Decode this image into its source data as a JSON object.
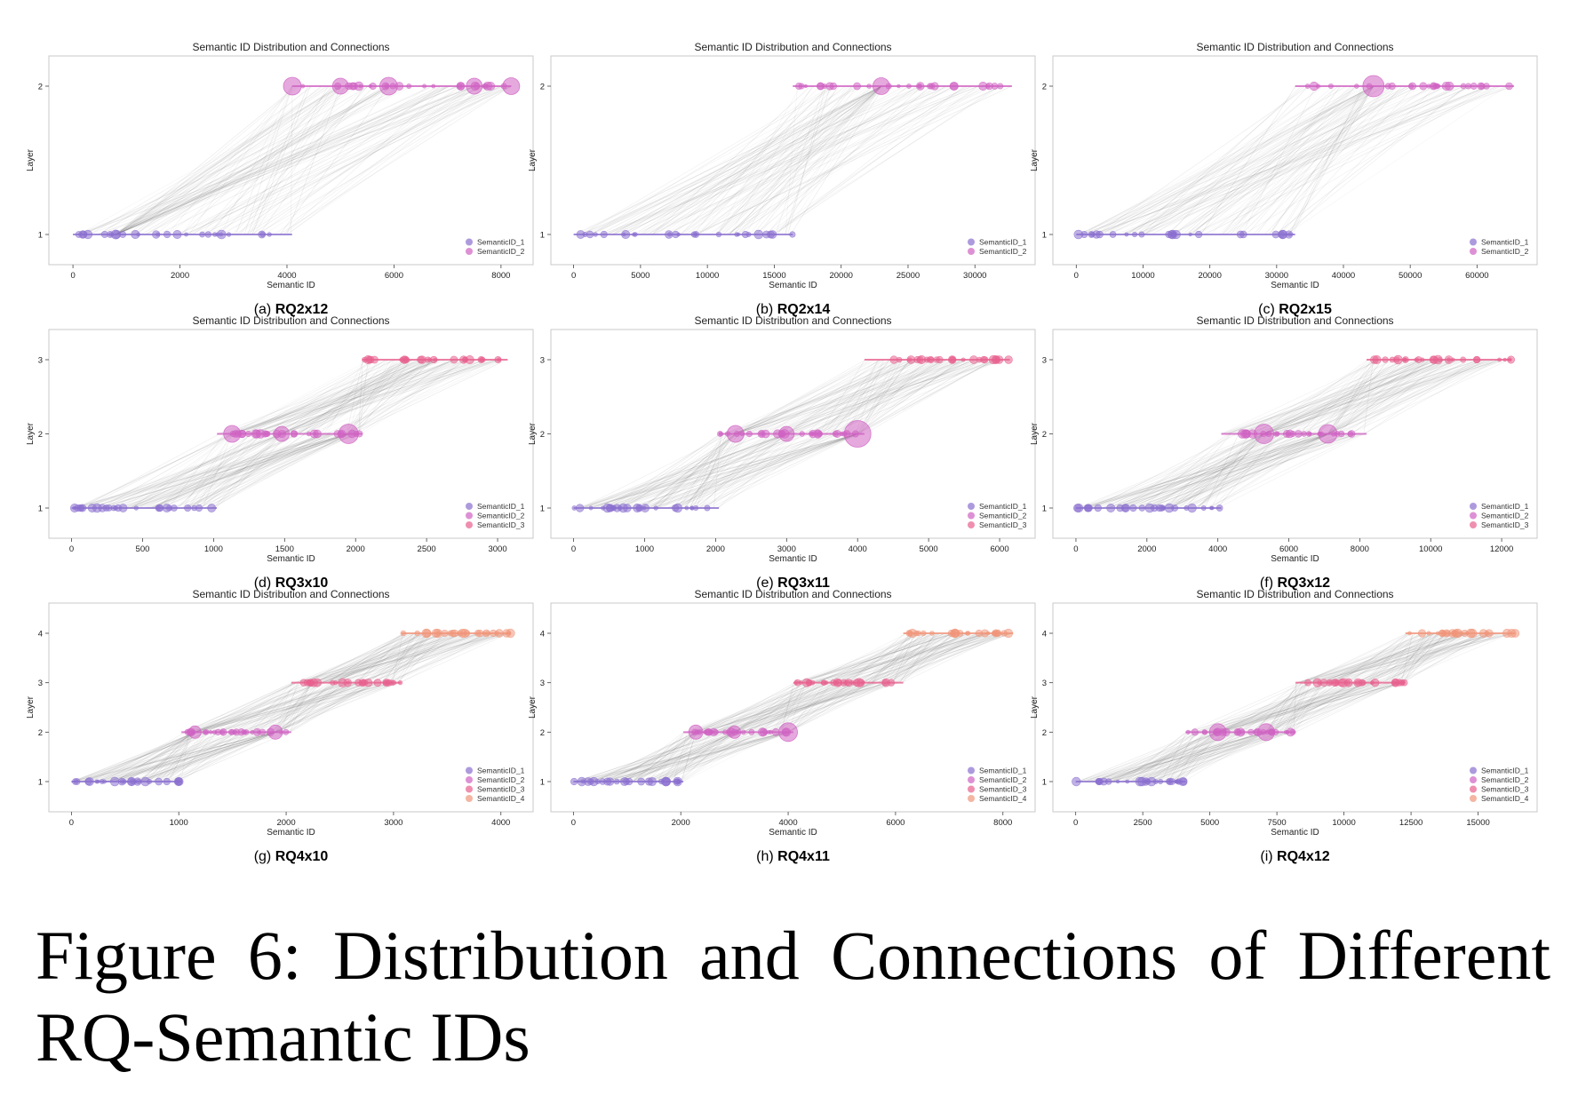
{
  "figure": {
    "caption": "Figure 6: Distribution and Connections of Different RQ-Semantic IDs"
  },
  "colors": {
    "SemanticID_1": "#8a6fcf",
    "SemanticID_2": "#cf62c2",
    "SemanticID_3": "#e8608e",
    "SemanticID_4": "#f0957a",
    "connection": "#555555"
  },
  "chart_data": [
    {
      "type": "scatter",
      "title": "Semantic ID Distribution and Connections",
      "xlabel": "Semantic ID",
      "ylabel": "Layer",
      "subcaption_prefix": "(a)",
      "subcaption_bold": "RQ2x12",
      "xlim": [
        -450,
        8600
      ],
      "xticks": [
        0,
        2000,
        4000,
        6000,
        8000
      ],
      "layers": [
        1,
        2
      ],
      "legend": [
        "SemanticID_1",
        "SemanticID_2"
      ],
      "legend_position": "lower-right",
      "series": [
        {
          "name": "SemanticID_1",
          "layer": 1,
          "range": [
            0,
            4095
          ]
        },
        {
          "name": "SemanticID_2",
          "layer": 2,
          "range": [
            4096,
            8191
          ]
        }
      ],
      "hubs": [
        [
          4100,
          2,
          1.0
        ],
        [
          5000,
          2,
          0.9
        ],
        [
          5900,
          2,
          1.0
        ],
        [
          7500,
          2,
          0.9
        ],
        [
          8191,
          2,
          0.95
        ],
        [
          800,
          1,
          0.5
        ]
      ]
    },
    {
      "type": "scatter",
      "title": "Semantic ID Distribution and Connections",
      "xlabel": "Semantic ID",
      "ylabel": "Layer",
      "subcaption_prefix": "(b)",
      "subcaption_bold": "RQ2x14",
      "xlim": [
        -1700,
        34500
      ],
      "xticks": [
        0,
        5000,
        10000,
        15000,
        20000,
        25000,
        30000
      ],
      "layers": [
        1,
        2
      ],
      "legend": [
        "SemanticID_1",
        "SemanticID_2"
      ],
      "legend_position": "lower-right",
      "series": [
        {
          "name": "SemanticID_1",
          "layer": 1,
          "range": [
            0,
            16383
          ]
        },
        {
          "name": "SemanticID_2",
          "layer": 2,
          "range": [
            16384,
            32767
          ]
        }
      ],
      "hubs": [
        [
          23000,
          2,
          0.95
        ]
      ]
    },
    {
      "type": "scatter",
      "title": "Semantic ID Distribution and Connections",
      "xlabel": "Semantic ID",
      "ylabel": "Layer",
      "subcaption_prefix": "(c)",
      "subcaption_bold": "RQ2x15",
      "xlim": [
        -3500,
        69000
      ],
      "xticks": [
        0,
        10000,
        20000,
        30000,
        40000,
        50000,
        60000
      ],
      "layers": [
        1,
        2
      ],
      "legend": [
        "SemanticID_1",
        "SemanticID_2"
      ],
      "legend_position": "lower-right",
      "series": [
        {
          "name": "SemanticID_1",
          "layer": 1,
          "range": [
            0,
            32767
          ]
        },
        {
          "name": "SemanticID_2",
          "layer": 2,
          "range": [
            32768,
            65535
          ]
        }
      ],
      "hubs": [
        [
          44500,
          2,
          1.2
        ]
      ]
    },
    {
      "type": "scatter",
      "title": "Semantic ID Distribution and Connections",
      "xlabel": "Semantic ID",
      "ylabel": "Layer",
      "subcaption_prefix": "(d)",
      "subcaption_bold": "RQ3x10",
      "xlim": [
        -160,
        3250
      ],
      "xticks": [
        0,
        500,
        1000,
        1500,
        2000,
        2500,
        3000
      ],
      "layers": [
        1,
        2,
        3
      ],
      "legend": [
        "SemanticID_1",
        "SemanticID_2",
        "SemanticID_3"
      ],
      "legend_position": "lower-right",
      "series": [
        {
          "name": "SemanticID_1",
          "layer": 1,
          "range": [
            0,
            1023
          ]
        },
        {
          "name": "SemanticID_2",
          "layer": 2,
          "range": [
            1024,
            2047
          ]
        },
        {
          "name": "SemanticID_3",
          "layer": 3,
          "range": [
            2048,
            3071
          ]
        }
      ],
      "hubs": [
        [
          1130,
          2,
          0.95
        ],
        [
          1480,
          2,
          0.85
        ],
        [
          1950,
          2,
          1.1
        ]
      ]
    },
    {
      "type": "scatter",
      "title": "Semantic ID Distribution and Connections",
      "xlabel": "Semantic ID",
      "ylabel": "Layer",
      "subcaption_prefix": "(e)",
      "subcaption_bold": "RQ3x11",
      "xlim": [
        -320,
        6500
      ],
      "xticks": [
        0,
        1000,
        2000,
        3000,
        4000,
        5000,
        6000
      ],
      "layers": [
        1,
        2,
        3
      ],
      "legend": [
        "SemanticID_1",
        "SemanticID_2",
        "SemanticID_3"
      ],
      "legend_position": "lower-right",
      "series": [
        {
          "name": "SemanticID_1",
          "layer": 1,
          "range": [
            0,
            2047
          ]
        },
        {
          "name": "SemanticID_2",
          "layer": 2,
          "range": [
            2048,
            4095
          ]
        },
        {
          "name": "SemanticID_3",
          "layer": 3,
          "range": [
            4096,
            6143
          ]
        }
      ],
      "hubs": [
        [
          2280,
          2,
          0.95
        ],
        [
          3000,
          2,
          0.85
        ],
        [
          4000,
          2,
          1.5
        ]
      ]
    },
    {
      "type": "scatter",
      "title": "Semantic ID Distribution and Connections",
      "xlabel": "Semantic ID",
      "ylabel": "Layer",
      "subcaption_prefix": "(f)",
      "subcaption_bold": "RQ3x12",
      "xlim": [
        -650,
        13000
      ],
      "xticks": [
        0,
        2000,
        4000,
        6000,
        8000,
        10000,
        12000
      ],
      "layers": [
        1,
        2,
        3
      ],
      "legend": [
        "SemanticID_1",
        "SemanticID_2",
        "SemanticID_3"
      ],
      "legend_position": "lower-right",
      "series": [
        {
          "name": "SemanticID_1",
          "layer": 1,
          "range": [
            0,
            4095
          ]
        },
        {
          "name": "SemanticID_2",
          "layer": 2,
          "range": [
            4096,
            8191
          ]
        },
        {
          "name": "SemanticID_3",
          "layer": 3,
          "range": [
            8192,
            12287
          ]
        }
      ],
      "hubs": [
        [
          5300,
          2,
          1.1
        ],
        [
          7100,
          2,
          1.05
        ]
      ]
    },
    {
      "type": "scatter",
      "title": "Semantic ID Distribution and Connections",
      "xlabel": "Semantic ID",
      "ylabel": "Layer",
      "subcaption_prefix": "(g)",
      "subcaption_bold": "RQ4x10",
      "xlim": [
        -210,
        4300
      ],
      "xticks": [
        0,
        1000,
        2000,
        3000,
        4000
      ],
      "layers": [
        1,
        2,
        3,
        4
      ],
      "legend": [
        "SemanticID_1",
        "SemanticID_2",
        "SemanticID_3",
        "SemanticID_4"
      ],
      "legend_position": "lower-right",
      "series": [
        {
          "name": "SemanticID_1",
          "layer": 1,
          "range": [
            0,
            1023
          ]
        },
        {
          "name": "SemanticID_2",
          "layer": 2,
          "range": [
            1024,
            2047
          ]
        },
        {
          "name": "SemanticID_3",
          "layer": 3,
          "range": [
            2048,
            3071
          ]
        },
        {
          "name": "SemanticID_4",
          "layer": 4,
          "range": [
            3072,
            4095
          ]
        }
      ],
      "hubs": [
        [
          1150,
          2,
          0.7
        ],
        [
          1900,
          2,
          0.8
        ]
      ]
    },
    {
      "type": "scatter",
      "title": "Semantic ID Distribution and Connections",
      "xlabel": "Semantic ID",
      "ylabel": "Layer",
      "subcaption_prefix": "(h)",
      "subcaption_bold": "RQ4x11",
      "xlim": [
        -420,
        8600
      ],
      "xticks": [
        0,
        2000,
        4000,
        6000,
        8000
      ],
      "layers": [
        1,
        2,
        3,
        4
      ],
      "legend": [
        "SemanticID_1",
        "SemanticID_2",
        "SemanticID_3",
        "SemanticID_4"
      ],
      "legend_position": "lower-right",
      "series": [
        {
          "name": "SemanticID_1",
          "layer": 1,
          "range": [
            0,
            2047
          ]
        },
        {
          "name": "SemanticID_2",
          "layer": 2,
          "range": [
            2048,
            4095
          ]
        },
        {
          "name": "SemanticID_3",
          "layer": 3,
          "range": [
            4096,
            6143
          ]
        },
        {
          "name": "SemanticID_4",
          "layer": 4,
          "range": [
            6144,
            8191
          ]
        }
      ],
      "hubs": [
        [
          2280,
          2,
          0.8
        ],
        [
          3000,
          2,
          0.7
        ],
        [
          4000,
          2,
          1.05
        ]
      ]
    },
    {
      "type": "scatter",
      "title": "Semantic ID Distribution and Connections",
      "xlabel": "Semantic ID",
      "ylabel": "Layer",
      "subcaption_prefix": "(i)",
      "subcaption_bold": "RQ4x12",
      "xlim": [
        -850,
        17200
      ],
      "xticks": [
        0,
        2500,
        5000,
        7500,
        10000,
        12500,
        15000
      ],
      "layers": [
        1,
        2,
        3,
        4
      ],
      "legend": [
        "SemanticID_1",
        "SemanticID_2",
        "SemanticID_3",
        "SemanticID_4"
      ],
      "legend_position": "lower-right",
      "series": [
        {
          "name": "SemanticID_1",
          "layer": 1,
          "range": [
            0,
            4095
          ]
        },
        {
          "name": "SemanticID_2",
          "layer": 2,
          "range": [
            4096,
            8191
          ]
        },
        {
          "name": "SemanticID_3",
          "layer": 3,
          "range": [
            8192,
            12287
          ]
        },
        {
          "name": "SemanticID_4",
          "layer": 4,
          "range": [
            12288,
            16383
          ]
        }
      ],
      "hubs": [
        [
          5300,
          2,
          0.95
        ],
        [
          7100,
          2,
          0.95
        ]
      ]
    }
  ]
}
